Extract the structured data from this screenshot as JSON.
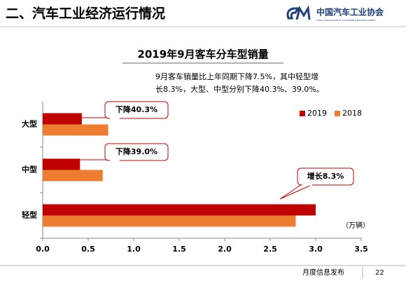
{
  "header": {
    "title": "二、汽车工业经济运行情况",
    "logo": "中国汽车工业协会",
    "logo_sub": "CHINA ASSOCIATION OF AUTOMOBILE MANUFACTURERS"
  },
  "chart_data": {
    "type": "hbar",
    "title": "2019年9月客车分车型销量",
    "note": [
      "9月客车销量比上年同期下降7.5%，其中轻型增",
      "长8.3%，大型、中型分别下降40.3%、39.0%。"
    ],
    "categories": [
      "大型",
      "中型",
      "轻型"
    ],
    "series": [
      {
        "name": "2019",
        "color": "#c00000",
        "values": [
          0.43,
          0.41,
          3.0
        ]
      },
      {
        "name": "2018",
        "color": "#ed7d31",
        "values": [
          0.72,
          0.66,
          2.78
        ]
      }
    ],
    "xlim": [
      0,
      3.5
    ],
    "xticks": [
      {
        "value": 0,
        "label": "0.0"
      },
      0.5,
      {
        "value": 1,
        "label": "1.0"
      },
      1.5,
      {
        "value": 2,
        "label": "2.0"
      },
      2.5,
      {
        "value": 3,
        "label": "3.0"
      },
      3.5
    ],
    "unit": "（万辆）",
    "annotations": [
      "下降40.3%",
      "下降39.0%",
      "增长8.3%"
    ],
    "legend_position": "upper right"
  },
  "footer": {
    "text": "月度信息发布",
    "page": "22"
  }
}
